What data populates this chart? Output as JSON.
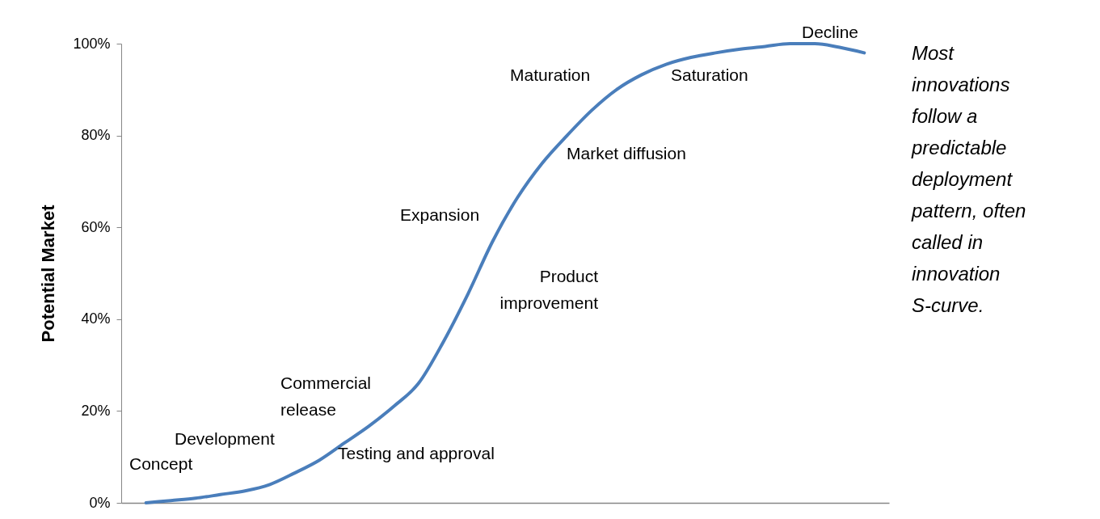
{
  "chart_data": {
    "type": "line",
    "ylabel": "Potential Market",
    "categories": [
      null,
      null,
      null,
      null,
      null,
      null,
      null,
      null,
      null,
      null,
      null,
      null,
      null,
      null,
      null,
      null,
      null,
      null,
      null,
      null,
      null,
      null,
      null,
      null,
      null,
      null,
      null,
      null,
      null,
      null
    ],
    "series": [
      {
        "color": "#4a7ebb",
        "values": [
          0,
          0.5,
          1,
          1.8,
          2.6,
          4,
          6.5,
          9.3,
          13,
          16.7,
          21,
          26,
          35,
          45.5,
          57,
          66.5,
          74,
          80,
          85.5,
          90,
          93.2,
          95.5,
          97,
          98,
          98.8,
          99.4,
          100,
          100,
          99.2,
          98
        ]
      }
    ],
    "ylim": [
      0,
      100
    ],
    "yticks": [
      {
        "value": 0,
        "label": "0%"
      },
      {
        "value": 20,
        "label": "20%"
      },
      {
        "value": 40,
        "label": "40%"
      },
      {
        "value": 60,
        "label": "60%"
      },
      {
        "value": 80,
        "label": "80%"
      },
      {
        "value": 100,
        "label": "100%"
      }
    ],
    "grid": false,
    "marker": "none",
    "line_style": "solid",
    "tick_labels": "y",
    "annotations": [
      "Concept",
      "Development",
      "Commercial release",
      "Testing and approval",
      "Expansion",
      "Product improvement",
      "Maturation",
      "Market diffusion",
      "Saturation",
      "Decline",
      "Most innovations follow a predictable deployment pattern, often called in innovation S-curve."
    ]
  }
}
